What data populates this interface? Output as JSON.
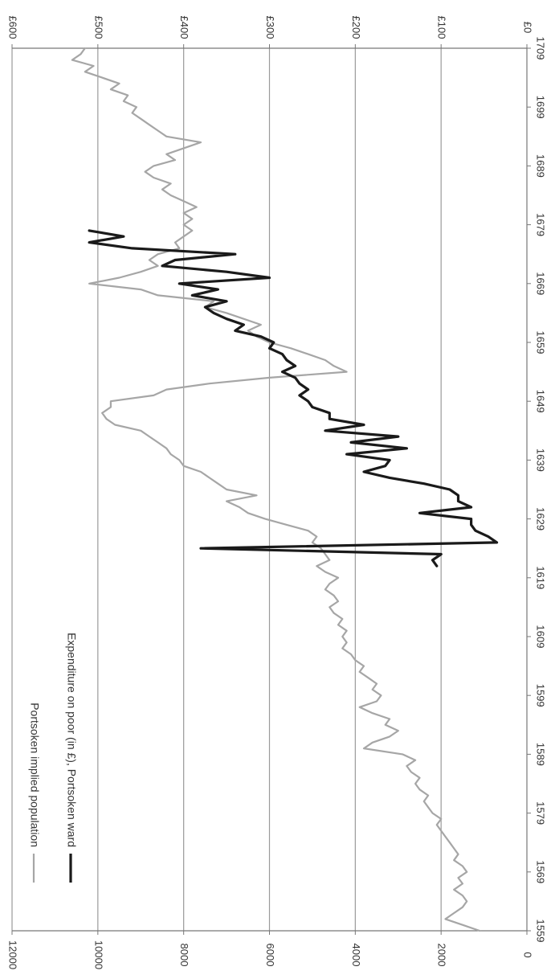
{
  "chart_data": {
    "type": "line",
    "orientation": "rotated 90 degrees clockwise; x axis runs top to bottom (latest year at top), primary y axis along bottom, secondary y axis along top",
    "title": "",
    "xlabel": "",
    "ylabel": "",
    "ylabel_secondary": "",
    "x_ticks": [
      "1559",
      "1569",
      "1579",
      "1589",
      "1599",
      "1609",
      "1619",
      "1629",
      "1639",
      "1649",
      "1659",
      "1669",
      "1679",
      "1689",
      "1699",
      "1709"
    ],
    "xlim": [
      1559,
      1709
    ],
    "y_ticks": [
      "0",
      "2000",
      "4000",
      "6000",
      "8000",
      "10000",
      "12000"
    ],
    "ylim": [
      0,
      12000
    ],
    "y2_ticks": [
      "£0",
      "£100",
      "£200",
      "£300",
      "£400",
      "£500",
      "£600"
    ],
    "y2lim": [
      0,
      600
    ],
    "grid": "horizontal gridlines at each primary y tick",
    "legend_position": "top-left",
    "colors": {
      "population": "#a6a6a6",
      "expenditure": "#1a1a1a",
      "grid": "#9a9a9a",
      "axis": "#777777"
    },
    "series": [
      {
        "name": "Portsoken implied population",
        "axis": "primary",
        "x": [
          1559,
          1560,
          1561,
          1562,
          1563,
          1564,
          1565,
          1566,
          1567,
          1568,
          1569,
          1570,
          1571,
          1572,
          1573,
          1574,
          1575,
          1576,
          1577,
          1578,
          1579,
          1580,
          1581,
          1582,
          1583,
          1584,
          1585,
          1586,
          1587,
          1588,
          1589,
          1590,
          1591,
          1592,
          1593,
          1594,
          1595,
          1596,
          1597,
          1598,
          1599,
          1600,
          1601,
          1602,
          1603,
          1604,
          1605,
          1606,
          1607,
          1608,
          1609,
          1610,
          1611,
          1612,
          1613,
          1614,
          1615,
          1616,
          1617,
          1618,
          1619,
          1620,
          1621,
          1622,
          1623,
          1624,
          1625,
          1626,
          1627,
          1628,
          1629,
          1630,
          1631,
          1632,
          1633,
          1634,
          1635,
          1636,
          1637,
          1638,
          1639,
          1640,
          1641,
          1642,
          1643,
          1644,
          1645,
          1646,
          1647,
          1648,
          1649,
          1650,
          1651,
          1652,
          1653,
          1654,
          1655,
          1656,
          1657,
          1658,
          1659,
          1660,
          1661,
          1662,
          1663,
          1664,
          1665,
          1666,
          1667,
          1668,
          1669,
          1670,
          1671,
          1672,
          1673,
          1674,
          1675,
          1676,
          1677,
          1678,
          1679,
          1680,
          1681,
          1682,
          1683,
          1684,
          1685,
          1686,
          1687,
          1688,
          1689,
          1690,
          1691,
          1692,
          1693,
          1694,
          1695,
          1696,
          1697,
          1698,
          1699,
          1700,
          1701,
          1702,
          1703,
          1704,
          1705,
          1706,
          1707,
          1708,
          1709
        ],
        "values": [
          1100,
          1500,
          1900,
          1700,
          1500,
          1400,
          1500,
          1700,
          1500,
          1600,
          1400,
          1500,
          1700,
          1600,
          1700,
          1800,
          1900,
          2000,
          2100,
          2000,
          2200,
          2300,
          2400,
          2300,
          2500,
          2600,
          2500,
          2700,
          2800,
          2600,
          2900,
          3800,
          3600,
          3200,
          3000,
          3300,
          3200,
          3600,
          3900,
          3500,
          3400,
          3600,
          3500,
          3700,
          3900,
          3800,
          4000,
          4100,
          4300,
          4200,
          4300,
          4200,
          4400,
          4300,
          4500,
          4600,
          4400,
          4500,
          4700,
          4600,
          4400,
          4700,
          4900,
          4600,
          4700,
          4800,
          5000,
          4900,
          5100,
          5600,
          6100,
          6500,
          6700,
          7000,
          6300,
          7000,
          7200,
          7400,
          7600,
          8000,
          8100,
          8300,
          8400,
          8600,
          8800,
          9000,
          9600,
          9800,
          9900,
          9700,
          9700,
          8700,
          8400,
          7400,
          6000,
          4200,
          4500,
          4700,
          5100,
          5500,
          6000,
          6300,
          6500,
          6200,
          6600,
          7000,
          7500,
          7300,
          8600,
          9000,
          10200,
          9500,
          9000,
          8600,
          8800,
          8600,
          8100,
          8200,
          8000,
          7800,
          8000,
          7800,
          8000,
          7700,
          8000,
          8300,
          8500,
          8300,
          8700,
          8900,
          8700,
          8200,
          8400,
          8000,
          7600,
          8400,
          8600,
          8800,
          9000,
          9200,
          9100,
          9400,
          9300,
          9700,
          9500,
          9900,
          10300,
          10100,
          10600,
          10400,
          10300
        ]
      },
      {
        "name": "Expenditure on poor (in £), Portsoken ward",
        "axis": "secondary",
        "x": [
          1621,
          1622,
          1623,
          1624,
          1625,
          1626,
          1627,
          1628,
          1629,
          1630,
          1631,
          1632,
          1633,
          1634,
          1635,
          1636,
          1637,
          1638,
          1639,
          1640,
          1641,
          1642,
          1643,
          1644,
          1645,
          1646,
          1647,
          1648,
          1649,
          1650,
          1651,
          1652,
          1653,
          1654,
          1655,
          1656,
          1657,
          1658,
          1659,
          1660,
          1661,
          1662,
          1663,
          1664,
          1665,
          1666,
          1667,
          1668,
          1669,
          1670,
          1671,
          1672,
          1673,
          1674,
          1675,
          1676,
          1677,
          1678
        ],
        "values": [
          105,
          110,
          100,
          380,
          35,
          45,
          60,
          65,
          65,
          125,
          65,
          80,
          80,
          90,
          120,
          160,
          190,
          165,
          160,
          210,
          140,
          205,
          150,
          235,
          190,
          230,
          230,
          250,
          255,
          265,
          255,
          265,
          270,
          285,
          270,
          280,
          285,
          300,
          295,
          310,
          340,
          330,
          350,
          365,
          375,
          350,
          390,
          360,
          405,
          300,
          350,
          425,
          410,
          340,
          460,
          510,
          470,
          510
        ]
      }
    ]
  }
}
